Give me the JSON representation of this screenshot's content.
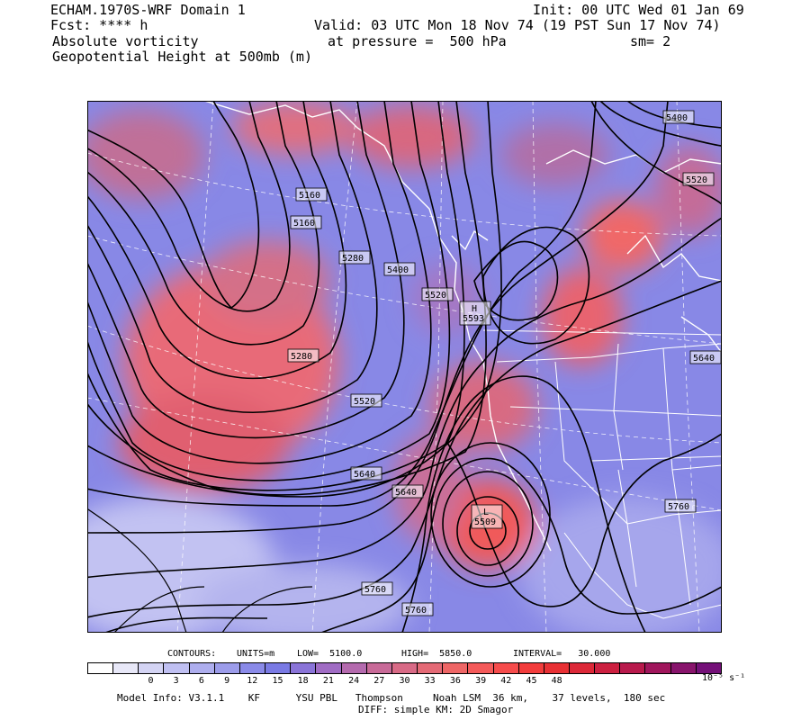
{
  "header": {
    "line1_left": "ECHAM.1970S-WRF Domain 1",
    "line1_right": "Init: 00 UTC Wed 01 Jan 69",
    "line2_left": "Fcst: **** h",
    "line2_right": "Valid: 03 UTC Mon 18 Nov 74 (19 PST Sun 17 Nov 74)",
    "line3_left": "Absolute vorticity",
    "line3_mid": "at pressure =  500 hPa",
    "line3_right": "sm= 2",
    "line4_left": "Geopotential Height at 500mb (m)"
  },
  "contour_info": {
    "label": "CONTOURS:",
    "units": "UNITS=m",
    "low": "LOW=  5100.0",
    "high": "HIGH=  5850.0",
    "interval": "INTERVAL=   30.000"
  },
  "colorbar": {
    "colors": [
      "#ffffff",
      "#e8e8f8",
      "#d4d4f4",
      "#c0c0f2",
      "#aeaeee",
      "#9c9cea",
      "#8a8ae8",
      "#7a7ae4",
      "#8a74d8",
      "#a06cc4",
      "#b46aae",
      "#c86a98",
      "#d86a86",
      "#e46a76",
      "#ee6666",
      "#f45a5a",
      "#f64c4c",
      "#f23c3c",
      "#e83034",
      "#dc2838",
      "#cc2040",
      "#b81a4c",
      "#a0165c",
      "#88146c",
      "#741078"
    ],
    "tick_labels": [
      "0",
      "3",
      "6",
      "9",
      "12",
      "15",
      "18",
      "21",
      "24",
      "27",
      "30",
      "33",
      "36",
      "39",
      "42",
      "45",
      "48"
    ],
    "unit_label": "10⁻⁵ s⁻¹"
  },
  "footer": {
    "line1": "Model Info: V3.1.1    KF      YSU PBL   Thompson     Noah LSM  36 km,    37 levels,  180 sec",
    "line2": "DIFF: simple KM: 2D Smagor"
  },
  "map": {
    "contour_labels": [
      {
        "text": "5160"
      },
      {
        "text": "5160"
      },
      {
        "text": "5280"
      },
      {
        "text": "5400"
      },
      {
        "text": "5520"
      },
      {
        "text": "5280"
      },
      {
        "text": "5520"
      },
      {
        "text": "5640"
      },
      {
        "text": "5640"
      },
      {
        "text": "5760"
      },
      {
        "text": "5760"
      },
      {
        "text": "5400"
      },
      {
        "text": "5520"
      },
      {
        "text": "5640"
      },
      {
        "text": "5760"
      }
    ],
    "highs": [
      {
        "symbol": "H",
        "value": "5593"
      }
    ],
    "lows": [
      {
        "symbol": "L",
        "value": "5509"
      }
    ]
  }
}
